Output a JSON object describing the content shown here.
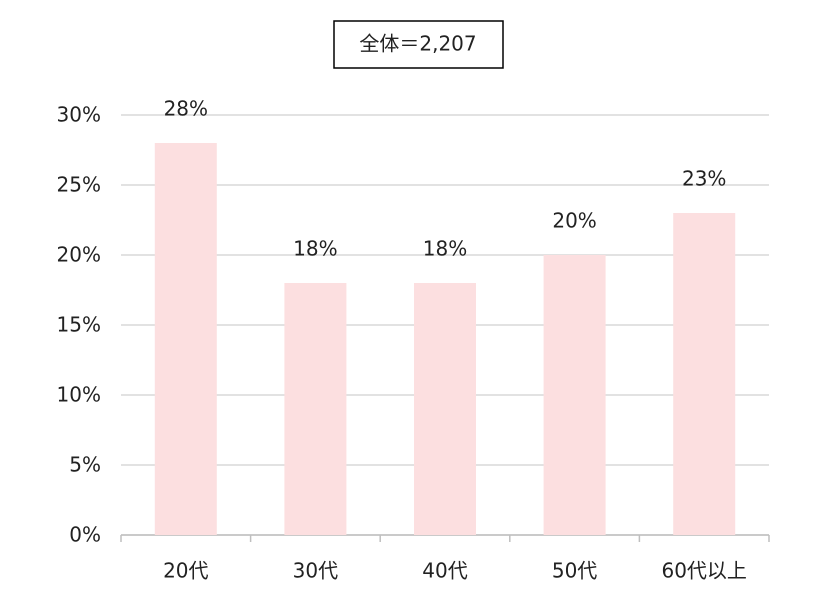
{
  "chart_data": {
    "type": "bar",
    "title": "全体＝2,207",
    "categories": [
      "20代",
      "30代",
      "40代",
      "50代",
      "60代以上"
    ],
    "values": [
      28,
      18,
      18,
      20,
      23
    ],
    "value_labels": [
      "28%",
      "18%",
      "18%",
      "20%",
      "23%"
    ],
    "color": "#fcdfe0",
    "ylim": [
      0,
      30
    ],
    "yticks": [
      {
        "value": 0,
        "label": "0%"
      },
      {
        "value": 5,
        "label": "5%"
      },
      {
        "value": 10,
        "label": "10%"
      },
      {
        "value": 15,
        "label": "15%"
      },
      {
        "value": 20,
        "label": "20%"
      },
      {
        "value": 25,
        "label": "25%"
      },
      {
        "value": 30,
        "label": "30%"
      }
    ],
    "grid": true
  }
}
